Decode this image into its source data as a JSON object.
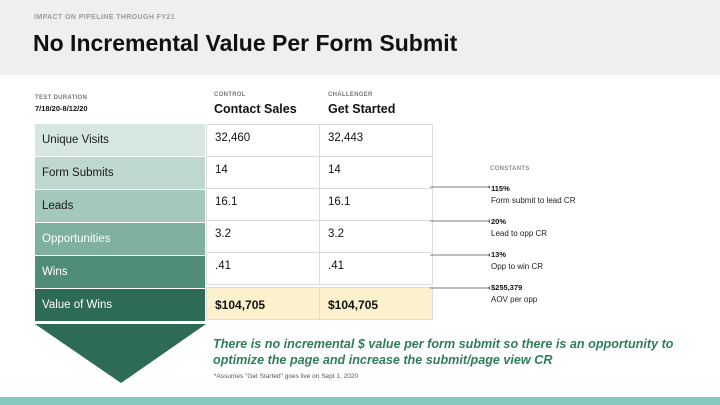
{
  "header": {
    "kicker": "IMPACT ON PIPELINE THROUGH FY21",
    "title": "No Incremental Value Per Form Submit"
  },
  "test": {
    "duration_label": "TEST DURATION",
    "duration_value": "7/18/20-8/12/20"
  },
  "columns": [
    {
      "label": "CONTROL",
      "name": "Contact Sales"
    },
    {
      "label": "CHALLENGER",
      "name": "Get Started"
    }
  ],
  "rows": [
    {
      "label": "Unique Visits",
      "control": "32,460",
      "challenger": "32,443",
      "color": "#d6e6e1"
    },
    {
      "label": "Form Submits",
      "control": "14",
      "challenger": "14",
      "color": "#bfd8cf"
    },
    {
      "label": "Leads",
      "control": "16.1",
      "challenger": "16.1",
      "color": "#a5c8bc"
    },
    {
      "label": "Opportunities",
      "control": "3.2",
      "challenger": "3.2",
      "color": "#7faf9f"
    },
    {
      "label": "Wins",
      "control": ".41",
      "challenger": ".41",
      "color": "#4f8d77"
    },
    {
      "label": "Value of Wins",
      "control": "$104,705",
      "challenger": "$104,705",
      "color": "#2e6b55"
    }
  ],
  "constants": {
    "title": "CONSTANTS",
    "items": [
      {
        "value": "115%",
        "desc": "Form submit to lead CR"
      },
      {
        "value": "20%",
        "desc": "Lead to opp CR"
      },
      {
        "value": "13%",
        "desc": "Opp to win CR"
      },
      {
        "value": "$255,379",
        "desc": "AOV per opp"
      }
    ]
  },
  "conclusion": "There is no incremental $ value per form submit so there is an opportunity to optimize the page and increase the submit/page view CR",
  "footnote": "*Assumes \"Get Started\" goes live on Sept 1, 2020",
  "colors": {
    "highlight_cell": "#fcf1cc",
    "conclusion_text": "#2e7d5b",
    "bottom_bar": "#86c7be",
    "funnel_arrow": "#2e6b55"
  }
}
